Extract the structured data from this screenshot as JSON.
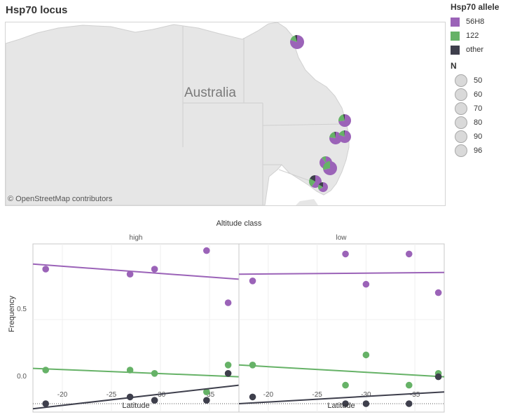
{
  "title": "Hsp70 locus",
  "map": {
    "country_label": "Australia",
    "attribution": "© OpenStreetMap contributors"
  },
  "legend": {
    "color_title": "Hsp70 allele",
    "color_items": [
      {
        "label": "56H8",
        "color": "#9b63b8"
      },
      {
        "label": "122",
        "color": "#66b267"
      },
      {
        "label": "other",
        "color": "#3e3f4c"
      }
    ],
    "size_title": "N",
    "size_items": [
      "50",
      "60",
      "70",
      "80",
      "90",
      "96"
    ]
  },
  "chart_data": {
    "type": "scatter",
    "title": "Altitude class",
    "xlabel": "Latitude",
    "ylabel": "Frequency",
    "xlim": [
      -17,
      -38
    ],
    "ylim": [
      -0.05,
      0.95
    ],
    "x_ticks": [
      "-20",
      "-25",
      "-30",
      "-35"
    ],
    "y_ticks": [
      "0.0",
      "0.5"
    ],
    "series_colors": {
      "56H8": "#9b63b8",
      "122": "#66b267",
      "other": "#3e3f4c"
    },
    "panels": [
      {
        "name": "high",
        "series": [
          {
            "name": "56H8",
            "x": [
              -18.3,
              -26.9,
              -29.4,
              -34.7,
              -36.9
            ],
            "y": [
              0.8,
              0.77,
              0.8,
              0.91,
              0.6
            ],
            "trend": [
              [
                -17,
                0.83
              ],
              [
                -38,
                0.74
              ]
            ]
          },
          {
            "name": "122",
            "x": [
              -18.3,
              -26.9,
              -29.4,
              -34.7,
              -36.9
            ],
            "y": [
              0.2,
              0.2,
              0.18,
              0.07,
              0.23
            ],
            "trend": [
              [
                -17,
                0.21
              ],
              [
                -38,
                0.16
              ]
            ]
          },
          {
            "name": "other",
            "x": [
              -18.3,
              -26.9,
              -29.4,
              -34.7,
              -36.9
            ],
            "y": [
              0.0,
              0.04,
              0.02,
              0.02,
              0.18
            ],
            "trend": [
              [
                -17,
                -0.03
              ],
              [
                -38,
                0.11
              ]
            ]
          }
        ]
      },
      {
        "name": "low",
        "series": [
          {
            "name": "56H8",
            "x": [
              -18.4,
              -27.9,
              -30.0,
              -34.4,
              -37.4
            ],
            "y": [
              0.73,
              0.89,
              0.71,
              0.89,
              0.66
            ],
            "trend": [
              [
                -17,
                0.77
              ],
              [
                -38,
                0.78
              ]
            ]
          },
          {
            "name": "122",
            "x": [
              -18.4,
              -27.9,
              -30.0,
              -34.4,
              -37.4
            ],
            "y": [
              0.23,
              0.11,
              0.29,
              0.11,
              0.18
            ],
            "trend": [
              [
                -17,
                0.23
              ],
              [
                -38,
                0.16
              ]
            ]
          },
          {
            "name": "other",
            "x": [
              -18.4,
              -27.9,
              -30.0,
              -34.4,
              -37.4
            ],
            "y": [
              0.04,
              0.0,
              0.0,
              0.0,
              0.16
            ],
            "trend": [
              [
                -17,
                0.0
              ],
              [
                -38,
                0.07
              ]
            ]
          }
        ]
      }
    ]
  }
}
